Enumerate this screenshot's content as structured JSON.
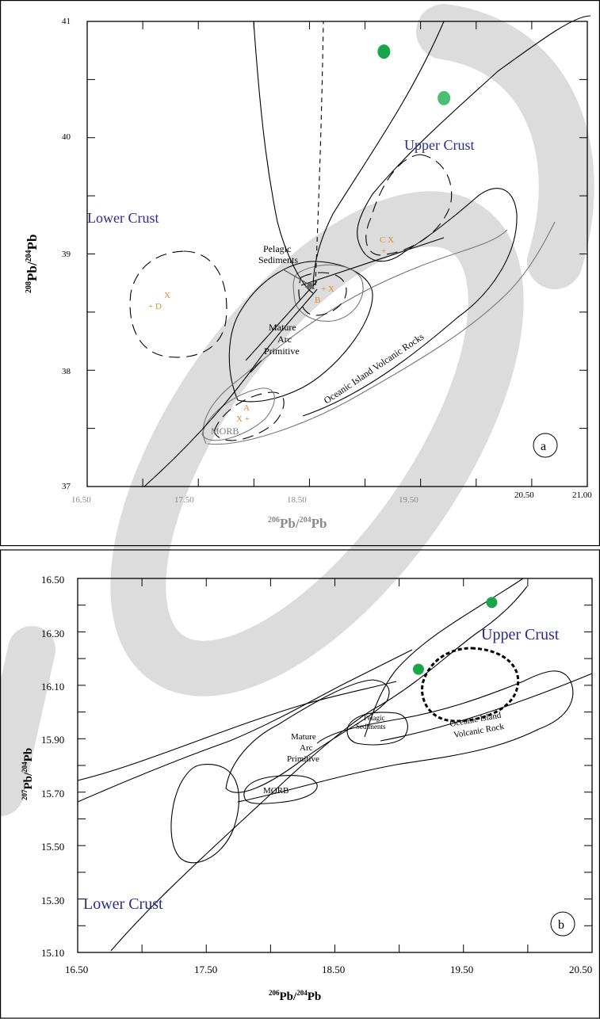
{
  "chart_data": [
    {
      "type": "scatter",
      "panel": "a",
      "xlabel_base": "Pb/",
      "xlabel_sup1": "206",
      "xlabel_sup2": "204",
      "xlabel_tail": "Pb",
      "ylabel_sup1": "208",
      "ylabel_mid": "Pb/",
      "ylabel_sup2": "204",
      "ylabel_tail": "Pb",
      "xlim": [
        16.5,
        21.0
      ],
      "ylim": [
        37,
        41
      ],
      "x_ticks": [
        "16.50",
        "17.50",
        "18.50",
        "19.50",
        "20.50",
        "21.00"
      ],
      "y_ticks": [
        "37",
        "38",
        "39",
        "40",
        "41"
      ],
      "points": [
        {
          "x": 19.17,
          "y": 40.74,
          "color": "#1aa54a"
        },
        {
          "x": 19.71,
          "y": 40.34,
          "color": "#4cbf6e"
        }
      ],
      "field_labels": {
        "upper": "Upper Crust",
        "lower": "Lower Crust",
        "pelagic1": "Pelagic",
        "pelagic2": "Sediments",
        "arc1": "Mature",
        "arc2": "Arc",
        "arc3": "Primitive",
        "oib": "Oceanic Island Volcanic Rocks",
        "morb": "MORB"
      },
      "markers": {
        "a": "A",
        "b": "B",
        "c": "C",
        "d": "D",
        "x": "X",
        "plus": "+",
        "cx": "C X",
        "xplus": "X +",
        "plusx": "+ X",
        "plusd": "+ D"
      },
      "badge": "a"
    },
    {
      "type": "scatter",
      "panel": "b",
      "xlabel_sup1": "206",
      "xlabel_mid": "Pb/",
      "xlabel_sup2": "204",
      "xlabel_tail": "Pb",
      "ylabel_sup1": "207",
      "ylabel_mid": "Pb/",
      "ylabel_sup2": "204",
      "ylabel_tail": "Pb",
      "xlim": [
        16.5,
        20.5
      ],
      "ylim": [
        15.1,
        16.5
      ],
      "x_ticks": [
        "16.50",
        "17.50",
        "18.50",
        "19.50",
        "20.50"
      ],
      "y_ticks": [
        "15.10",
        "15.30",
        "15.50",
        "15.70",
        "15.90",
        "16.10",
        "16.30",
        "16.50"
      ],
      "points": [
        {
          "x": 19.72,
          "y": 16.41,
          "color": "#1aa54a"
        },
        {
          "x": 19.15,
          "y": 16.16,
          "color": "#1aa54a"
        }
      ],
      "field_labels": {
        "upper": "Upper Crust",
        "lower": "Lower Crust",
        "pelagic1": "Pelagic",
        "pelagic2": "Sediments",
        "arc1": "Mature",
        "arc2": "Arc",
        "arc3": "Primitive",
        "oib1": "Oceanic Island",
        "oib2": "Volcanic Rock",
        "morb": "MORB"
      },
      "badge": "b"
    }
  ]
}
